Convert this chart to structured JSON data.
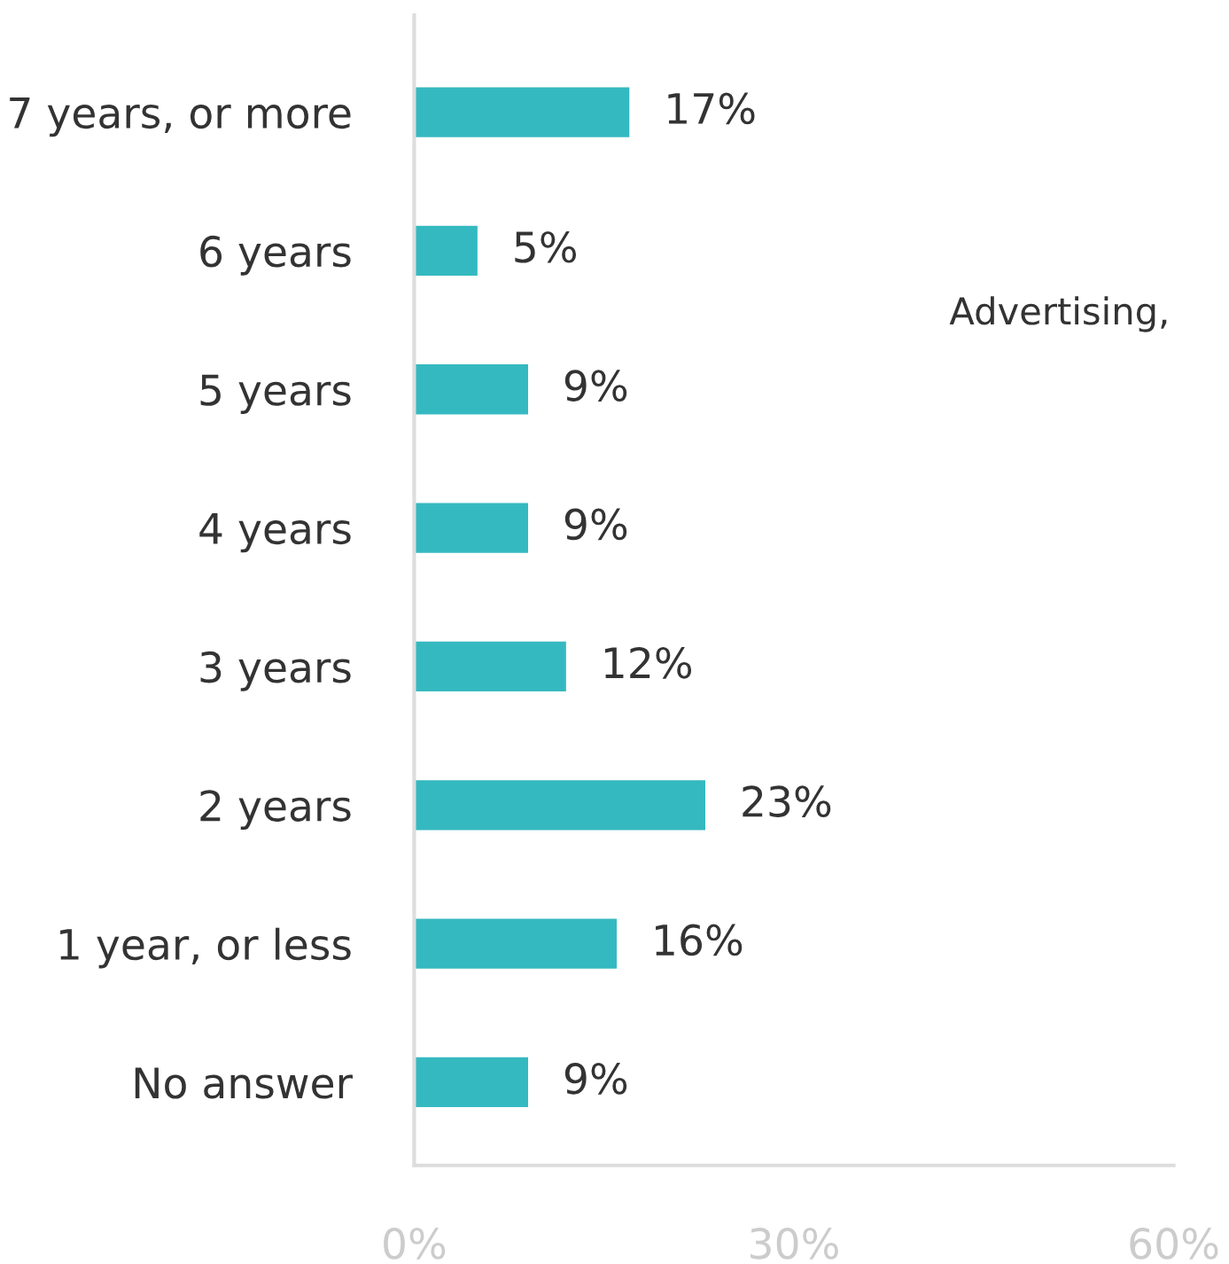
{
  "chart_data": {
    "type": "bar",
    "orientation": "horizontal",
    "categories": [
      "7 years, or more",
      "6 years",
      "5 years",
      "4 years",
      "3 years",
      "2 years",
      "1 year, or less",
      "No answer"
    ],
    "values": [
      17,
      5,
      9,
      9,
      12,
      23,
      16,
      9
    ],
    "color": "#35b9c0",
    "value_labels": [
      "17%",
      "5%",
      "9%",
      "9%",
      "12%",
      "23%",
      "16%",
      "9%"
    ],
    "xlim": [
      0,
      60
    ],
    "xticks": [
      {
        "value": 0,
        "label": "0%"
      },
      {
        "value": 30,
        "label": "30%"
      },
      {
        "value": 60,
        "label": "60%"
      }
    ],
    "grid": false,
    "legend": false,
    "annotations": [
      "Advertising,"
    ]
  }
}
